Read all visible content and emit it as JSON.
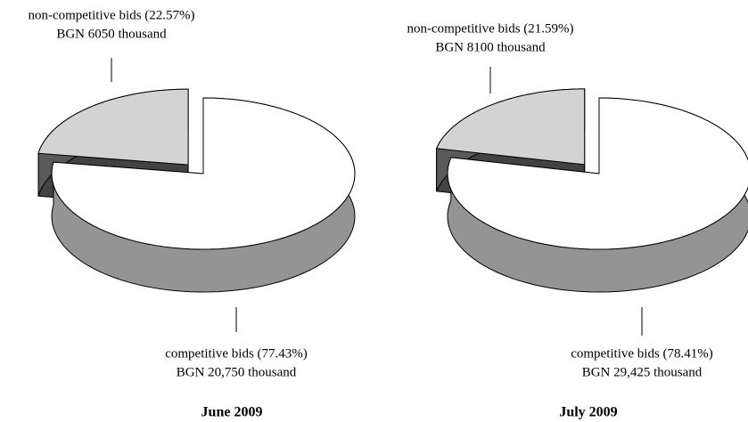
{
  "chart_data": [
    {
      "type": "pie",
      "title": "June 2009",
      "categories": [
        "non-competitive bids (22.57%)",
        "competitive bids (77.43%)"
      ],
      "values": [
        6050,
        20750
      ],
      "value_labels": [
        "BGN 6050 thousand",
        "BGN 20,750 thousand"
      ],
      "colors": [
        "#d3d3d3",
        "#ffffff"
      ]
    },
    {
      "type": "pie",
      "title": "July 2009",
      "categories": [
        "non-competitive bids (21.59%)",
        "competitive bids (78.41%)"
      ],
      "values": [
        8100,
        29425
      ],
      "value_labels": [
        "BGN 8100 thousand",
        "BGN 29,425 thousand"
      ],
      "colors": [
        "#d3d3d3",
        "#ffffff"
      ]
    }
  ]
}
